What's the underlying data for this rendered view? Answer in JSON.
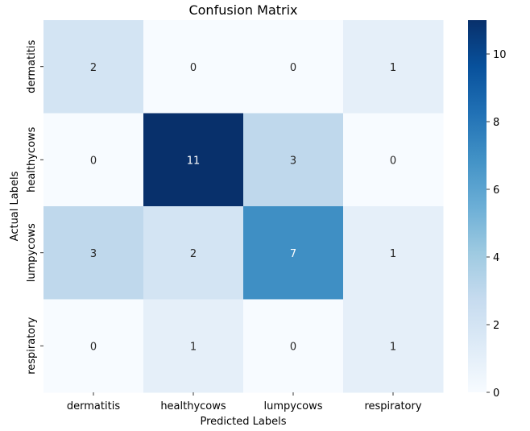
{
  "chart_data": {
    "type": "heatmap",
    "title": "Confusion Matrix",
    "xlabel": "Predicted Labels",
    "ylabel": "Actual Labels",
    "x_categories": [
      "dermatitis",
      "healthycows",
      "lumpycows",
      "respiratory"
    ],
    "y_categories": [
      "dermatitis",
      "healthycows",
      "lumpycows",
      "respiratory"
    ],
    "values": [
      [
        2,
        0,
        0,
        1
      ],
      [
        0,
        11,
        3,
        0
      ],
      [
        3,
        2,
        7,
        1
      ],
      [
        0,
        1,
        0,
        1
      ]
    ],
    "colorbar": {
      "min": 0,
      "max": 11,
      "ticks": [
        0,
        2,
        4,
        6,
        8,
        10
      ]
    },
    "colormap": "Blues"
  }
}
